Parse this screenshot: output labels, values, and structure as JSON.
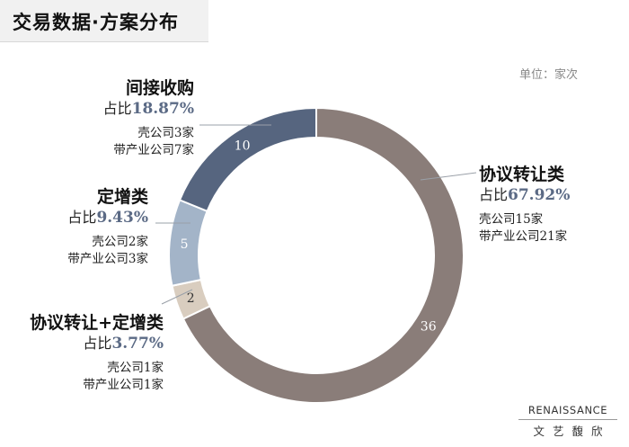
{
  "header": {
    "title": "交易数据·方案分布"
  },
  "unit_label": "单位：家次",
  "brand": {
    "en": "RENAISSANCE",
    "cn": "文艺馥欣"
  },
  "chart_data": {
    "type": "pie",
    "donut": true,
    "title": "交易数据·方案分布",
    "unit": "单位：家次",
    "categories": [
      "协议转让类",
      "协议转让+定增类",
      "定增类",
      "间接收购"
    ],
    "values": [
      36,
      2,
      5,
      10
    ],
    "data_labels": [
      "36",
      "2",
      "5",
      "10"
    ],
    "share_labels": [
      "67.92%",
      "3.77%",
      "9.43%",
      "18.87%"
    ],
    "colors": [
      "#8a7d79",
      "#d9cdbf",
      "#a3b4c8",
      "#56657f"
    ],
    "details": [
      [
        "壳公司15家",
        "带产业公司21家"
      ],
      [
        "壳公司1家",
        "带产业公司1家"
      ],
      [
        "壳公司2家",
        "带产业公司3家"
      ],
      [
        "壳公司3家",
        "带产业公司7家"
      ]
    ]
  },
  "labels": {
    "share_prefix": "占比",
    "transfer": {
      "name": "协议转让类",
      "pct": "67.92%",
      "shell": "壳公司15家",
      "industry": "带产业公司21家"
    },
    "indirect": {
      "name": "间接收购",
      "pct": "18.87%",
      "shell": "壳公司3家",
      "industry": "带产业公司7家"
    },
    "placement": {
      "name": "定增类",
      "pct": "9.43%",
      "shell": "壳公司2家",
      "industry": "带产业公司3家"
    },
    "combo": {
      "name": "协议转让+定增类",
      "pct": "3.77%",
      "shell": "壳公司1家",
      "industry": "带产业公司1家"
    }
  }
}
